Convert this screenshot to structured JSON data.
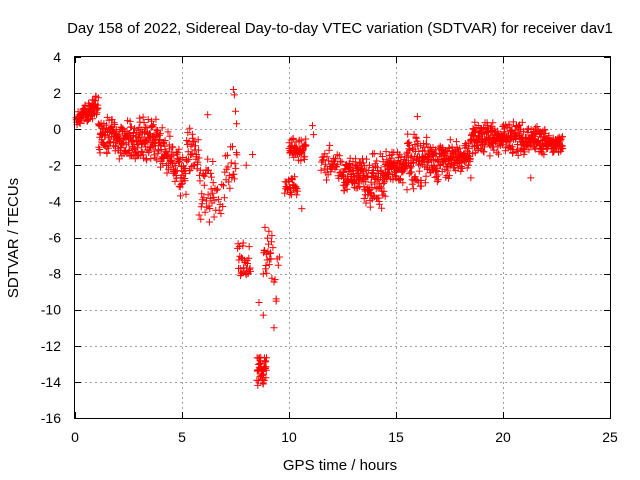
{
  "chart_data": {
    "type": "scatter",
    "title": "Day 158 of 2022, Sidereal Day-to-day VTEC variation (SDTVAR) for receiver dav1",
    "xlabel": "GPS time / hours",
    "ylabel": "SDTVAR / TECUs",
    "xlim": [
      0,
      25
    ],
    "ylim": [
      -16,
      4
    ],
    "xticks": [
      0,
      5,
      10,
      15,
      20,
      25
    ],
    "yticks": [
      -16,
      -14,
      -12,
      -10,
      -8,
      -6,
      -4,
      -2,
      0,
      2,
      4
    ],
    "grid": true,
    "marker": "plus",
    "color": "#ff0000",
    "segments": [
      {
        "x0": 0.05,
        "x1": 0.3,
        "lo": 0.2,
        "hi": 1.0,
        "step": 0.012
      },
      {
        "x0": 0.3,
        "x1": 0.8,
        "lo": 0.3,
        "hi": 1.5,
        "step": 0.012
      },
      {
        "x0": 0.8,
        "x1": 1.1,
        "lo": 0.5,
        "hi": 2.0,
        "step": 0.012
      },
      {
        "x0": 1.1,
        "x1": 2.0,
        "lo": -1.6,
        "hi": 0.8,
        "step": 0.012
      },
      {
        "x0": 2.0,
        "x1": 3.0,
        "lo": -1.8,
        "hi": 0.5,
        "step": 0.012
      },
      {
        "x0": 3.0,
        "x1": 4.0,
        "lo": -2.2,
        "hi": 1.0,
        "step": 0.012
      },
      {
        "x0": 4.0,
        "x1": 4.6,
        "lo": -3.0,
        "hi": 0.2,
        "step": 0.015
      },
      {
        "x0": 4.6,
        "x1": 5.2,
        "lo": -4.0,
        "hi": -1.0,
        "step": 0.015
      },
      {
        "x0": 5.2,
        "x1": 5.8,
        "lo": -3.0,
        "hi": 0.3,
        "step": 0.018
      },
      {
        "x0": 5.8,
        "x1": 6.5,
        "lo": -5.8,
        "hi": -1.0,
        "step": 0.02
      },
      {
        "x0": 6.5,
        "x1": 7.0,
        "lo": -5.0,
        "hi": -2.5,
        "step": 0.04
      },
      {
        "x0": 7.0,
        "x1": 7.6,
        "lo": -3.5,
        "hi": -0.5,
        "step": 0.03
      },
      {
        "x0": 7.6,
        "x1": 8.2,
        "lo": -8.8,
        "hi": -6.0,
        "step": 0.02
      },
      {
        "x0": 8.5,
        "x1": 8.95,
        "lo": -14.2,
        "hi": -12.5,
        "step": 0.01
      },
      {
        "x0": 8.8,
        "x1": 9.2,
        "lo": -8.5,
        "hi": -5.0,
        "step": 0.02
      },
      {
        "x0": 9.2,
        "x1": 9.6,
        "lo": -10.8,
        "hi": -6.0,
        "step": 0.05
      },
      {
        "x0": 9.8,
        "x1": 10.4,
        "lo": -4.0,
        "hi": -2.5,
        "step": 0.02
      },
      {
        "x0": 10.0,
        "x1": 10.8,
        "lo": -2.0,
        "hi": -0.2,
        "step": 0.015
      },
      {
        "x0": 11.5,
        "x1": 12.5,
        "lo": -3.0,
        "hi": -1.0,
        "step": 0.025
      },
      {
        "x0": 12.5,
        "x1": 13.5,
        "lo": -3.5,
        "hi": -1.5,
        "step": 0.012
      },
      {
        "x0": 13.5,
        "x1": 14.5,
        "lo": -4.5,
        "hi": -1.2,
        "step": 0.012
      },
      {
        "x0": 14.5,
        "x1": 15.5,
        "lo": -3.0,
        "hi": -1.0,
        "step": 0.012
      },
      {
        "x0": 15.5,
        "x1": 16.5,
        "lo": -3.5,
        "hi": 0.0,
        "step": 0.012
      },
      {
        "x0": 16.5,
        "x1": 17.5,
        "lo": -3.0,
        "hi": -0.5,
        "step": 0.012
      },
      {
        "x0": 17.5,
        "x1": 18.5,
        "lo": -2.5,
        "hi": -0.5,
        "step": 0.012
      },
      {
        "x0": 18.5,
        "x1": 19.5,
        "lo": -1.6,
        "hi": 0.5,
        "step": 0.012
      },
      {
        "x0": 19.5,
        "x1": 21.0,
        "lo": -1.5,
        "hi": 0.5,
        "step": 0.012
      },
      {
        "x0": 21.0,
        "x1": 22.0,
        "lo": -1.5,
        "hi": 0.3,
        "step": 0.012
      },
      {
        "x0": 22.0,
        "x1": 22.8,
        "lo": -1.4,
        "hi": -0.3,
        "step": 0.012
      }
    ],
    "isolated_points": [
      [
        7.4,
        2.2
      ],
      [
        7.45,
        1.9
      ],
      [
        7.5,
        1.0
      ],
      [
        7.55,
        0.3
      ],
      [
        6.2,
        0.8
      ],
      [
        5.5,
        -0.5
      ],
      [
        8.3,
        -1.4
      ],
      [
        8.0,
        -2.0
      ],
      [
        9.4,
        -9.4
      ],
      [
        9.3,
        -11.0
      ],
      [
        8.8,
        -10.3
      ],
      [
        8.6,
        -9.6
      ],
      [
        10.6,
        -4.4
      ],
      [
        11.1,
        0.2
      ],
      [
        11.15,
        -0.3
      ],
      [
        11.9,
        -0.9
      ],
      [
        16.0,
        0.7
      ],
      [
        21.3,
        -2.7
      ],
      [
        18.5,
        -2.7
      ]
    ]
  }
}
